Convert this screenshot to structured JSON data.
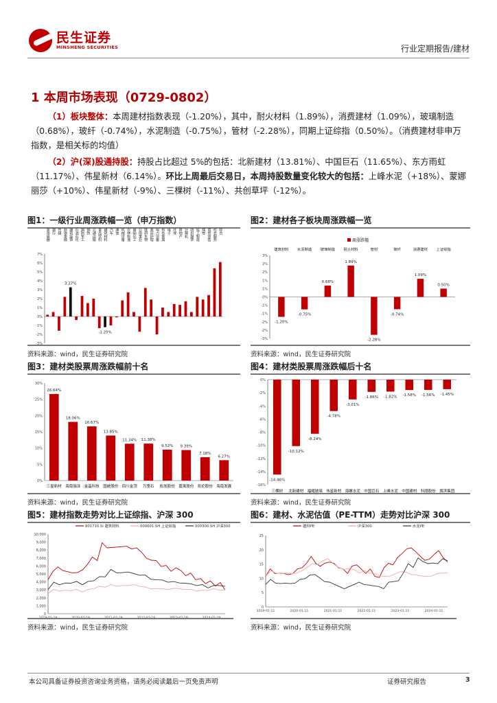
{
  "header": {
    "logo_cn": "民生证券",
    "logo_en": "MINSHENG SECURITIES",
    "report_type": "行业定期报告/建材"
  },
  "section_title": "1 本周市场表现（0729-0802）",
  "para1": {
    "lead": "（1）板块整体：",
    "text": "本周建材指数表现（-1.20%），其中，耐火材料（1.89%），消费建材（1.09%），玻璃制造（0.68%），玻纤（-0.74%），水泥制造（-0.75%），管材（-2.28%），同期上证综指（0.50%）。（消费建材非申万指数，是相关标的均值）"
  },
  "para2": {
    "lead": "（2）沪(深)股通持股：",
    "text1": "持股占比超过 5%的包括：北新建材（13.81%）、中国巨石（11.65%）、东方雨虹（11.17%）、伟星新材（6.14%）。",
    "bold": "环比上周最后交易日，本周持股数量变化较大的包括：",
    "text2": "上峰水泥（+18%）、蒙娜丽莎（+10%）、伟星新材（-9%）、三棵树（-11%）、共创草坪（-12%）。"
  },
  "figures": [
    {
      "title": "图1：一级行业周涨跌幅一览（申万指数）",
      "source": "资料来源：wind，民生证券研究院"
    },
    {
      "title": "图2：建材各子板块周涨跌幅一览",
      "source": "资料来源：wind，民生证券研究院"
    },
    {
      "title": "图3：建材类股票周涨跌幅前十名",
      "source": "资料来源：wind，民生证券研究院"
    },
    {
      "title": "图4：建材类股票周涨跌幅后十名",
      "source": "资料来源：wind，民生证券研究院"
    },
    {
      "title": "图5：建材指数走势对比上证综指、沪深 300",
      "source": "资料来源：wind，民生证券研究院"
    },
    {
      "title": "图6：建材、水泥估值（PE-TTM）走势对比沪深 300",
      "source": "资料来源：wind，民生证券研究院"
    }
  ],
  "chart_data": [
    {
      "type": "bar",
      "title": "一级行业周涨跌幅一览（申万指数）",
      "categories": [
        "家用电器",
        "银行",
        "传媒",
        "非银金融",
        "建筑装饰",
        "石油石化",
        "国防军工",
        "钢铁",
        "交通运输",
        "食品饮料",
        "建筑材料",
        "汽车",
        "通信",
        "机械设备",
        "农林牧渔",
        "基础化工",
        "公用事业",
        "医药生物",
        "美容护理",
        "电力设备",
        "有色金属",
        "电子",
        "环保",
        "房地产",
        "计算机",
        "纺织服饰",
        "轻工制造",
        "煤炭",
        "商贸零售",
        "社会服务",
        "综合"
      ],
      "values": [
        0.2,
        0.5,
        -1.6,
        2.2,
        3.27,
        -0.4,
        2.3,
        1.5,
        2.0,
        -1.3,
        -1.2,
        -1.0,
        -0.1,
        1.8,
        2.7,
        0.5,
        -1.7,
        3.2,
        1.9,
        -2.0,
        1.0,
        0.5,
        1.4,
        1.3,
        1.7,
        0.5,
        2.2,
        1.9,
        2.4,
        5.4,
        6.1
      ],
      "highlight": [
        4,
        10
      ],
      "data_labels": {
        "4": "3.27%",
        "10": "-1.20%"
      },
      "ylim": [
        -3,
        7
      ],
      "ticks": [
        "7%",
        "6%",
        "5%",
        "4%",
        "3%",
        "2%",
        "1%",
        "0%",
        "-1%",
        "-2%",
        "-3%"
      ]
    },
    {
      "type": "bar",
      "title": "建材各子板块周涨跌幅一览",
      "legend": "周涨跌幅",
      "categories": [
        "建筑材料",
        "水泥制造",
        "玻璃制造",
        "耐火材料",
        "管材",
        "玻纤",
        "消费建材",
        "上证综指"
      ],
      "values": [
        -1.2,
        -0.75,
        0.68,
        1.89,
        -2.28,
        -0.74,
        1.09,
        0.5
      ],
      "data_labels": [
        "-1.20%",
        "-0.75%",
        "0.68%",
        "1.89%",
        "-2.28%",
        "-0.74%",
        "1.09%",
        "0.50%"
      ],
      "ylim": [
        -2.5,
        2.5
      ],
      "ticks": [
        "3%",
        "2%",
        "2%",
        "1%",
        "1%",
        "0%",
        "-1%",
        "-1%",
        "-2%",
        "-2%",
        "-3%"
      ]
    },
    {
      "type": "bar",
      "title": "建材类股票周涨跌幅前十名",
      "categories": [
        "三星新材",
        "海南瑞泽",
        "金晶科技",
        "国统股份",
        "四川金顶",
        "万里石",
        "松发股份",
        "嘉寓股份",
        "凯伦股份",
        "海南发展"
      ],
      "values": [
        26.64,
        18.06,
        16.67,
        13.85,
        11.34,
        11.38,
        9.52,
        9.39,
        7.18,
        6.27
      ],
      "data_labels": [
        "26.64%",
        "18.06%",
        "16.67%",
        "13.85%",
        "11.34%",
        "11.38%",
        "9.52%",
        "9.39%",
        "7.18%",
        "6.27%"
      ],
      "ylim": [
        0,
        30
      ],
      "ticks": [
        "30%",
        "25%",
        "20%",
        "15%",
        "10%",
        "5%",
        "0%"
      ]
    },
    {
      "type": "bar",
      "title": "建材类股票周涨跌幅后十名",
      "categories": [
        "三棵树",
        "北新建材",
        "福耀玻璃",
        "伟星新材",
        "海螺水泥",
        "中国巨石",
        "上峰水泥",
        "中国建材",
        "科顺股份",
        "旗滨集团"
      ],
      "values": [
        -14.46,
        -10.12,
        -8.24,
        -4.78,
        -3.01,
        -1.86,
        -1.82,
        -1.58,
        -1.56,
        -1.45
      ],
      "data_labels": [
        "-14.46%",
        "-10.12%",
        "-8.24%",
        "-4.78%",
        "-3.01%",
        "-1.86%",
        "-1.82%",
        "-1.58%",
        "-1.56%",
        "-1.45%"
      ],
      "ylim": [
        -16,
        0
      ],
      "ticks": [
        "0%",
        "-2%",
        "-4%",
        "-6%",
        "-8%",
        "-10%",
        "-12%",
        "-14%",
        "-16%"
      ]
    },
    {
      "type": "line",
      "title": "建材指数走势对比上证综指、沪深 300",
      "ylim": [
        0,
        10000
      ],
      "ticks": [
        "10,000",
        "9,000",
        "8,000",
        "7,000",
        "6,000",
        "5,000",
        "4,000",
        "3,000",
        "2,000",
        "1,000",
        "0"
      ],
      "x_ticks": [
        "2019-02-19",
        "2020-02-19",
        "2021-02-19",
        "2022-02-19",
        "2023-02-19",
        "2024-02-19"
      ],
      "series": [
        {
          "name": "801710.SI 建筑材料",
          "color": "#c00000",
          "values": [
            4400,
            5200,
            6000,
            5300,
            5400,
            5000,
            5300,
            5400,
            6300,
            7000,
            6800,
            8800,
            8400,
            8200,
            8500,
            8300,
            8600,
            8000,
            8400,
            7600,
            7100,
            6600,
            6800,
            5800,
            6200,
            5200,
            5900,
            5300,
            4900,
            5000,
            4400,
            4300,
            3900,
            4000,
            3600,
            3800,
            3100
          ]
        },
        {
          "name": "000001.SH 上证综指",
          "color": "#f4a6a6",
          "values": [
            2600,
            3000,
            2900,
            2900,
            2950,
            3000,
            2800,
            3000,
            3200,
            3400,
            3400,
            3600,
            3500,
            3500,
            3600,
            3600,
            3500,
            3300,
            3200,
            3100,
            3200,
            3000,
            3250,
            3100,
            3100,
            3000,
            2900,
            2900,
            3000,
            3100,
            3000,
            2950
          ]
        },
        {
          "name": "000300.SH 沪深300",
          "color": "#333333",
          "values": [
            3100,
            3900,
            3700,
            3800,
            3900,
            4000,
            3700,
            4000,
            4200,
            4600,
            4700,
            5500,
            5200,
            5100,
            5300,
            5000,
            4900,
            4800,
            4400,
            4200,
            4300,
            3900,
            4100,
            3800,
            3900,
            3700,
            3600,
            3600,
            3300,
            3500,
            3600,
            3400
          ]
        }
      ]
    },
    {
      "type": "line",
      "title": "建材、水泥估值（PE-TTM）走势对比沪深 300",
      "ylim": [
        0,
        25
      ],
      "ticks": [
        "25",
        "20",
        "15",
        "10",
        "5",
        "0"
      ],
      "x_ticks": [
        "2019-01-11",
        "2020-01-11",
        "2021-01-11",
        "2022-01-11",
        "2023-01-11",
        "2024-01-11"
      ],
      "series": [
        {
          "name": "建材PE",
          "color": "#c00000",
          "values": [
            11,
            13,
            12,
            11.5,
            12,
            11,
            12,
            13,
            14,
            15,
            18,
            15,
            14.5,
            15,
            16,
            15,
            14,
            13,
            12,
            14,
            15,
            13,
            12,
            13,
            11,
            10,
            14,
            15,
            15,
            17,
            19,
            20,
            21,
            19,
            18,
            16,
            17,
            18,
            20,
            17,
            16
          ]
        },
        {
          "name": "沪深300",
          "color": "#f4a6a6",
          "values": [
            11,
            12.5,
            12,
            11.5,
            12,
            11.5,
            12,
            12.5,
            14,
            15,
            15,
            16,
            17,
            15,
            14,
            13,
            13.5,
            13,
            12,
            12.5,
            12,
            11.5,
            11,
            10.5,
            11,
            11.5,
            12.5,
            12,
            11.5,
            11,
            11,
            10.5,
            11,
            11.5,
            12,
            11.8
          ]
        },
        {
          "name": "水泥PE",
          "color": "#333333",
          "values": [
            8,
            9.5,
            8.5,
            8,
            8.5,
            8,
            8.5,
            9.5,
            10,
            11,
            11.5,
            10,
            9,
            8.5,
            8,
            7,
            6.5,
            7,
            8,
            8.5,
            8,
            7.5,
            7.5,
            7,
            6.5,
            8.5,
            9,
            9,
            12,
            15,
            14,
            17,
            16,
            15,
            15.5,
            15,
            17,
            16
          ]
        }
      ]
    }
  ],
  "footer": {
    "disclaimer": "本公司具备证券投资咨询业务资格，请务必阅读最后一页免责声明",
    "label": "证券研究报告",
    "page": "3"
  }
}
